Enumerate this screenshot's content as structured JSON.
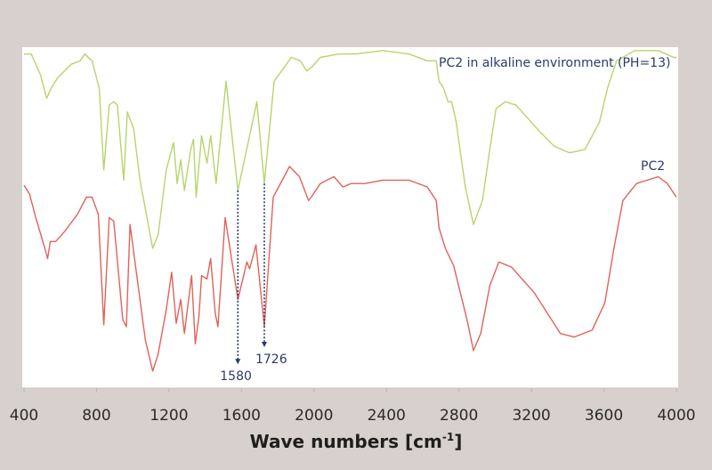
{
  "chart_data": {
    "type": "line",
    "title": "",
    "xlabel": "Wave numbers [cm",
    "xlabel_sup": "-1",
    "xlabel_end": "]",
    "ylabel": "",
    "xlim": [
      400,
      4000
    ],
    "ylim": [
      0,
      100
    ],
    "x_ticks": [
      "400",
      "800",
      "1200",
      "1600",
      "2000",
      "2400",
      "2800",
      "3200",
      "3600",
      "4000"
    ],
    "x_tick_values": [
      400,
      800,
      1200,
      1600,
      2000,
      2400,
      2800,
      3200,
      3600,
      4000
    ],
    "grid": false,
    "series": [
      {
        "name": "PC2 in alkaline environment (PH=13)",
        "color": "#b7d46c",
        "points": [
          [
            400,
            98
          ],
          [
            440,
            98
          ],
          [
            490,
            92
          ],
          [
            525,
            85
          ],
          [
            550,
            88
          ],
          [
            585,
            91
          ],
          [
            660,
            95
          ],
          [
            710,
            96
          ],
          [
            735,
            98
          ],
          [
            775,
            96
          ],
          [
            815,
            88
          ],
          [
            840,
            64
          ],
          [
            870,
            83
          ],
          [
            895,
            84
          ],
          [
            915,
            83
          ],
          [
            950,
            61
          ],
          [
            970,
            81
          ],
          [
            1005,
            76
          ],
          [
            1040,
            61
          ],
          [
            1110,
            41
          ],
          [
            1140,
            45
          ],
          [
            1185,
            64
          ],
          [
            1225,
            72
          ],
          [
            1245,
            60
          ],
          [
            1265,
            67
          ],
          [
            1285,
            58
          ],
          [
            1320,
            70
          ],
          [
            1335,
            73
          ],
          [
            1350,
            56
          ],
          [
            1380,
            74
          ],
          [
            1410,
            66
          ],
          [
            1430,
            74
          ],
          [
            1460,
            60
          ],
          [
            1515,
            90
          ],
          [
            1580,
            58
          ],
          [
            1685,
            84
          ],
          [
            1726,
            60
          ],
          [
            1780,
            90
          ],
          [
            1875,
            97
          ],
          [
            1925,
            96
          ],
          [
            1960,
            93
          ],
          [
            1985,
            94
          ],
          [
            2035,
            97
          ],
          [
            2135,
            98
          ],
          [
            2230,
            98
          ],
          [
            2380,
            99
          ],
          [
            2525,
            98
          ],
          [
            2625,
            96
          ],
          [
            2675,
            96
          ],
          [
            2690,
            90
          ],
          [
            2715,
            88
          ],
          [
            2740,
            84
          ],
          [
            2760,
            84
          ],
          [
            2785,
            78
          ],
          [
            2835,
            59
          ],
          [
            2880,
            48
          ],
          [
            2930,
            55
          ],
          [
            2970,
            70
          ],
          [
            3005,
            82
          ],
          [
            3055,
            84
          ],
          [
            3115,
            83
          ],
          [
            3250,
            75
          ],
          [
            3325,
            71
          ],
          [
            3410,
            69
          ],
          [
            3495,
            70
          ],
          [
            3575,
            78
          ],
          [
            3620,
            88
          ],
          [
            3670,
            96
          ],
          [
            3770,
            99
          ],
          [
            3900,
            99
          ],
          [
            3985,
            97
          ],
          [
            4000,
            97
          ]
        ]
      },
      {
        "name": "PC2",
        "color": "#e0625b",
        "points": [
          [
            400,
            59.5
          ],
          [
            430,
            57
          ],
          [
            465,
            50
          ],
          [
            515,
            41
          ],
          [
            530,
            38
          ],
          [
            545,
            43
          ],
          [
            575,
            43
          ],
          [
            625,
            46
          ],
          [
            695,
            51
          ],
          [
            745,
            56
          ],
          [
            775,
            56
          ],
          [
            810,
            51
          ],
          [
            840,
            18.5
          ],
          [
            870,
            50
          ],
          [
            895,
            49
          ],
          [
            945,
            20
          ],
          [
            965,
            18
          ],
          [
            985,
            48
          ],
          [
            1020,
            34
          ],
          [
            1070,
            14
          ],
          [
            1110,
            5
          ],
          [
            1140,
            10
          ],
          [
            1185,
            23
          ],
          [
            1215,
            34
          ],
          [
            1240,
            19
          ],
          [
            1265,
            26
          ],
          [
            1285,
            16
          ],
          [
            1325,
            33
          ],
          [
            1345,
            13
          ],
          [
            1365,
            21
          ],
          [
            1380,
            33
          ],
          [
            1410,
            32
          ],
          [
            1430,
            38
          ],
          [
            1455,
            22
          ],
          [
            1470,
            18
          ],
          [
            1510,
            50
          ],
          [
            1580,
            26
          ],
          [
            1630,
            37
          ],
          [
            1645,
            35
          ],
          [
            1680,
            42
          ],
          [
            1726,
            18
          ],
          [
            1775,
            56
          ],
          [
            1865,
            65
          ],
          [
            1920,
            62
          ],
          [
            1970,
            55
          ],
          [
            1985,
            56
          ],
          [
            2035,
            60
          ],
          [
            2110,
            62
          ],
          [
            2160,
            59
          ],
          [
            2205,
            60
          ],
          [
            2280,
            60
          ],
          [
            2380,
            61
          ],
          [
            2525,
            61
          ],
          [
            2625,
            59
          ],
          [
            2675,
            55
          ],
          [
            2690,
            47
          ],
          [
            2725,
            41
          ],
          [
            2770,
            36
          ],
          [
            2845,
            20
          ],
          [
            2880,
            11
          ],
          [
            2920,
            16
          ],
          [
            2970,
            30
          ],
          [
            3020,
            37
          ],
          [
            3090,
            35.5
          ],
          [
            3215,
            28
          ],
          [
            3360,
            16
          ],
          [
            3435,
            15
          ],
          [
            3535,
            17
          ],
          [
            3605,
            25
          ],
          [
            3655,
            41
          ],
          [
            3705,
            55
          ],
          [
            3780,
            60
          ],
          [
            3900,
            62
          ],
          [
            3950,
            60
          ],
          [
            4000,
            56
          ]
        ]
      }
    ],
    "annotations": [
      {
        "label": "1580",
        "x": 1580,
        "from_series": 0,
        "y_from": 58,
        "y_to": 7
      },
      {
        "label": "1726",
        "x": 1726,
        "from_series": 0,
        "y_from": 60,
        "y_to": 12
      }
    ],
    "annot_color": "#2b3a6b"
  }
}
